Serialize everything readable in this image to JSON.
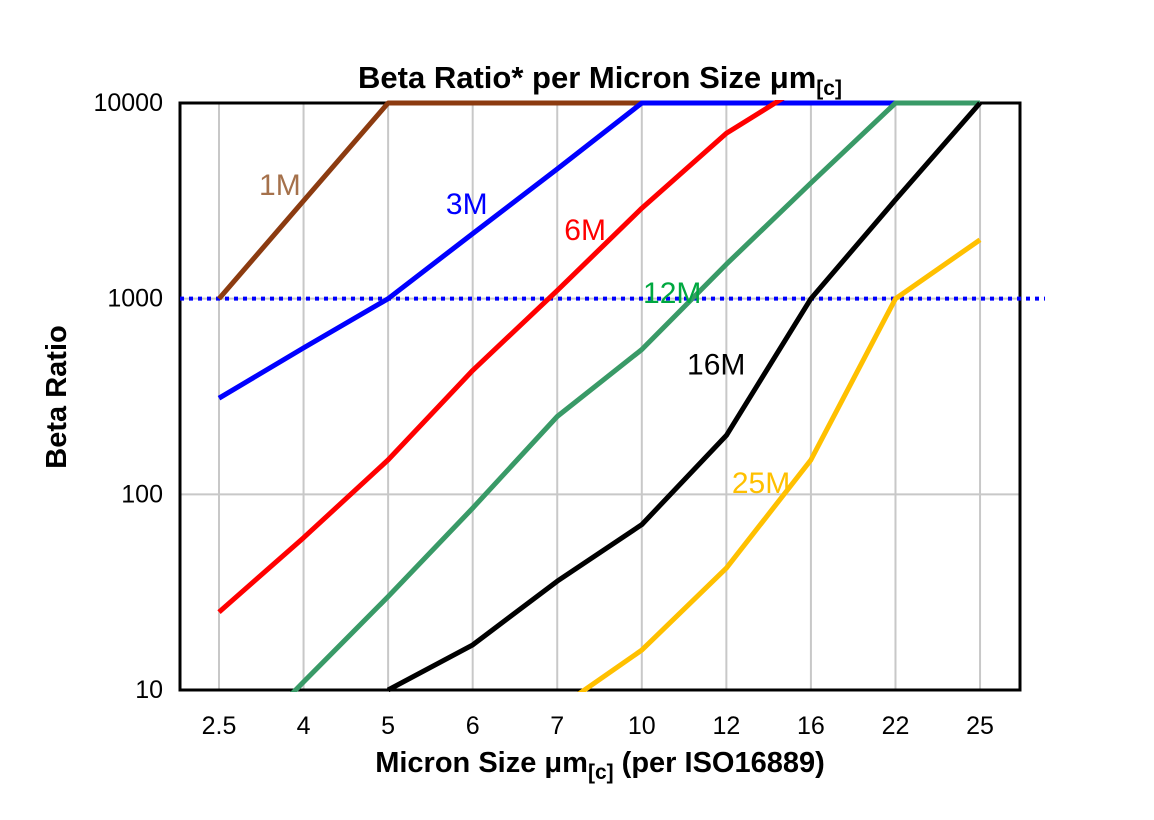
{
  "chart_data": {
    "type": "line",
    "title": {
      "main": "Beta Ratio* per Micron Size ",
      "unit": "μm",
      "subscript": "[c]"
    },
    "y_axis": {
      "title": "Beta Ratio",
      "scale": "log",
      "min": 10,
      "max": 10000,
      "tick_labels": [
        "10000",
        "1000",
        "100",
        "10"
      ],
      "tick_values": [
        10000,
        1000,
        100,
        10
      ],
      "grid_values": [
        1000,
        100
      ]
    },
    "x_axis": {
      "title_main": "Micron Size ",
      "title_unit": "μm",
      "title_sub": "[c]",
      "title_tail": " (per ISO16889)",
      "categories": [
        "2.5",
        "4",
        "5",
        "6",
        "7",
        "10",
        "12",
        "16",
        "22",
        "25"
      ]
    },
    "reference_line": {
      "value": 1000,
      "color": "#0000FF",
      "style": "dotted",
      "extends_past_right": true
    },
    "colors": {
      "grid": "#C8C8C8",
      "axis": "#000000",
      "background": "#FFFFFF"
    },
    "series": [
      {
        "name": "1M",
        "color": "#8C3B10",
        "label_color": "#A5714B",
        "values": [
          1000,
          3162,
          10000,
          10000,
          10000,
          10000,
          10000,
          10000,
          10000,
          10000
        ],
        "label_pos": {
          "x": 0.72,
          "value": 3800
        }
      },
      {
        "name": "3M",
        "color": "#0000FF",
        "label_color": "#0000FF",
        "values": [
          310,
          560,
          1000,
          2150,
          4600,
          10000,
          10000,
          10000,
          10000,
          10000
        ],
        "label_pos": {
          "x": 2.93,
          "value": 3050
        }
      },
      {
        "name": "6M",
        "color": "#FF0000",
        "label_color": "#FF0000",
        "values": [
          25,
          60,
          150,
          430,
          1100,
          2900,
          7000,
          13000,
          13000,
          13000
        ],
        "label_pos": {
          "x": 4.33,
          "value": 2250
        }
      },
      {
        "name": "12M",
        "color": "#399A67",
        "label_color": "#00A840",
        "values": [
          4,
          11,
          30,
          85,
          250,
          550,
          1500,
          3900,
          10000,
          10000
        ],
        "label_pos": {
          "x": 5.36,
          "value": 1070
        }
      },
      {
        "name": "16M",
        "color": "#000000",
        "label_color": "#000000",
        "values": [
          null,
          null,
          10,
          17,
          36,
          70,
          200,
          1000,
          3200,
          10000
        ],
        "label_pos": {
          "x": 5.88,
          "value": 460
        }
      },
      {
        "name": "25M",
        "color": "#FFC000",
        "label_color": "#FFC000",
        "values": [
          null,
          null,
          null,
          null,
          8,
          16,
          42,
          150,
          1000,
          2000
        ],
        "label_pos": {
          "x": 6.41,
          "value": 114
        }
      }
    ]
  }
}
